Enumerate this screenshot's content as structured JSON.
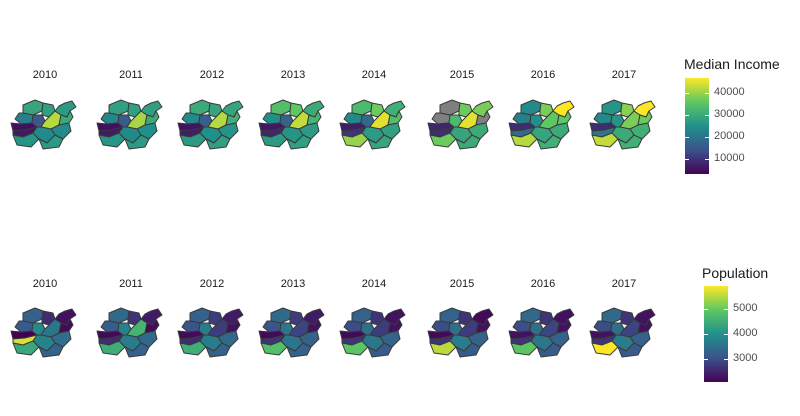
{
  "palette": [
    "#440154",
    "#3b528b",
    "#21908c",
    "#5dc863",
    "#fde725"
  ],
  "na_color": "#7f7f7f",
  "border_color": "#3a3a3a",
  "panels": [
    {
      "name": "income",
      "legend_title": "Median Income",
      "ticks": [
        "40000",
        "30000",
        "20000",
        "10000"
      ],
      "tick_values": [
        40000,
        30000,
        20000,
        10000
      ],
      "range": [
        3000,
        47000
      ],
      "years": [
        {
          "label": "2010",
          "values": [
            29000,
            22000,
            28000,
            5000,
            15000,
            42000,
            27000,
            30000,
            24000,
            6000,
            26000,
            24000,
            27000
          ]
        },
        {
          "label": "2011",
          "values": [
            28000,
            23000,
            28000,
            5000,
            16000,
            41000,
            28000,
            30000,
            25000,
            6500,
            26000,
            24000,
            27000
          ]
        },
        {
          "label": "2012",
          "values": [
            30000,
            24000,
            29000,
            5500,
            16500,
            42000,
            29000,
            31000,
            26000,
            7000,
            27000,
            25000,
            28000
          ]
        },
        {
          "label": "2013",
          "values": [
            34000,
            25000,
            36000,
            6000,
            17000,
            43000,
            30000,
            32000,
            27000,
            8000,
            27000,
            26000,
            28000
          ]
        },
        {
          "label": "2014",
          "values": [
            33000,
            24000,
            37000,
            7000,
            18000,
            45000,
            31000,
            34000,
            28000,
            10000,
            40000,
            27000,
            29000
          ]
        },
        {
          "label": "2015",
          "values": [
            null,
            null,
            37000,
            8000,
            33000,
            45000,
            38000,
            null,
            30000,
            9000,
            37000,
            29000,
            30000
          ]
        },
        {
          "label": "2016",
          "values": [
            24000,
            22000,
            38000,
            9000,
            25000,
            36000,
            47000,
            36000,
            30000,
            18000,
            42000,
            29000,
            31000
          ]
        },
        {
          "label": "2017",
          "values": [
            26000,
            24000,
            39000,
            9000,
            26000,
            38000,
            47000,
            37000,
            31000,
            20000,
            43000,
            30000,
            31000
          ]
        }
      ]
    },
    {
      "name": "population",
      "legend_title": "Population",
      "ticks": [
        "5000",
        "4000",
        "3000"
      ],
      "tick_values": [
        5000,
        4000,
        3000
      ],
      "range": [
        2100,
        5900
      ],
      "years": [
        {
          "label": "2010",
          "values": [
            3300,
            3200,
            2600,
            2100,
            3900,
            3600,
            2300,
            2200,
            3500,
            5700,
            4400,
            3800,
            3300
          ]
        },
        {
          "label": "2011",
          "values": [
            3400,
            3200,
            2700,
            2200,
            3800,
            4600,
            2400,
            2200,
            3400,
            2600,
            4500,
            3700,
            3300
          ]
        },
        {
          "label": "2012",
          "values": [
            3300,
            3100,
            2800,
            2200,
            3700,
            2800,
            2400,
            2300,
            3400,
            2600,
            4500,
            3700,
            3300
          ]
        },
        {
          "label": "2013",
          "values": [
            3400,
            3100,
            2800,
            2200,
            3600,
            2900,
            2400,
            2300,
            3300,
            2700,
            4800,
            3600,
            3300
          ]
        },
        {
          "label": "2014",
          "values": [
            3300,
            3000,
            2700,
            2200,
            3500,
            2800,
            2300,
            2300,
            3300,
            2700,
            4900,
            3600,
            3200
          ]
        },
        {
          "label": "2015",
          "values": [
            3300,
            3000,
            2700,
            2200,
            3500,
            2800,
            2200,
            2300,
            3300,
            2700,
            5500,
            3700,
            3200
          ]
        },
        {
          "label": "2016",
          "values": [
            3400,
            3000,
            2700,
            2300,
            3500,
            2900,
            2300,
            2300,
            3300,
            2700,
            4900,
            3600,
            3200
          ]
        },
        {
          "label": "2017",
          "values": [
            3400,
            3000,
            2700,
            2300,
            3500,
            2900,
            2300,
            2300,
            3300,
            2700,
            5900,
            3700,
            3200
          ]
        }
      ]
    }
  ]
}
